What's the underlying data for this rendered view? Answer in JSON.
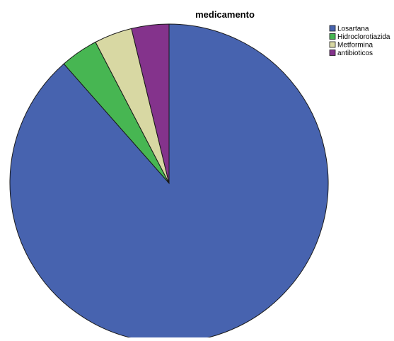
{
  "chart_data": {
    "type": "pie",
    "title": "medicamento",
    "categories": [
      "Losartana",
      "Hidroclorotiazida",
      "Metformina",
      "antibioticos"
    ],
    "values": [
      88.5,
      3.85,
      3.85,
      3.8
    ],
    "colors": [
      "#4763AF",
      "#47B652",
      "#D8D8A3",
      "#84338C"
    ],
    "start_angle_deg": 0,
    "direction": "clockwise-from-top",
    "legend": {
      "position": "top-right",
      "entries": [
        "Losartana",
        "Hidroclorotiazida",
        "Metformina",
        "antibioticos"
      ]
    }
  }
}
